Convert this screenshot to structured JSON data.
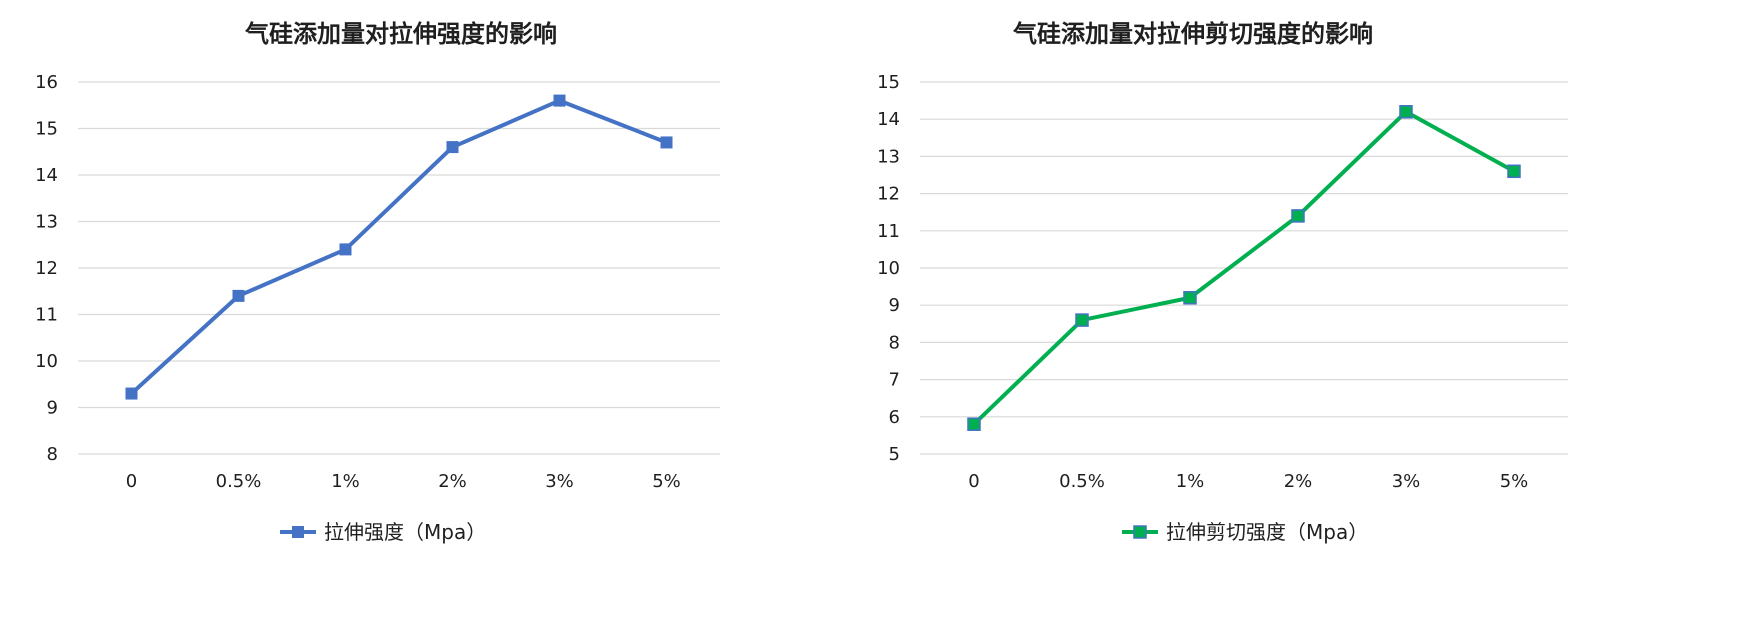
{
  "chart_data": [
    {
      "type": "line",
      "title": "气硅添加量对拉伸强度的影响",
      "xlabel": "",
      "ylabel": "",
      "categories": [
        "0",
        "0.5%",
        "1%",
        "2%",
        "3%",
        "5%"
      ],
      "ylim": [
        8,
        16
      ],
      "yticks": [
        "8",
        "9",
        "10",
        "11",
        "12",
        "13",
        "14",
        "15",
        "16"
      ],
      "grid": true,
      "legend_position": "bottom",
      "series": [
        {
          "name": "拉伸强度（Mpa）",
          "values": [
            9.3,
            11.4,
            12.4,
            14.6,
            15.6,
            14.7
          ],
          "color": "#4472c4",
          "marker_color": "#4472c4",
          "marker": "square"
        }
      ]
    },
    {
      "type": "line",
      "title": "气硅添加量对拉伸剪切强度的影响",
      "xlabel": "",
      "ylabel": "",
      "categories": [
        "0",
        "0.5%",
        "1%",
        "2%",
        "3%",
        "5%"
      ],
      "ylim": [
        5,
        15
      ],
      "yticks": [
        "5",
        "6",
        "7",
        "8",
        "9",
        "10",
        "11",
        "12",
        "13",
        "14",
        "15"
      ],
      "grid": true,
      "legend_position": "bottom",
      "series": [
        {
          "name": "拉伸剪切强度（Mpa）",
          "values": [
            5.8,
            8.6,
            9.2,
            11.4,
            14.2,
            12.6
          ],
          "color": "#00b050",
          "marker_color": "#00b050",
          "marker_border_color": "#4472c4",
          "marker": "square"
        }
      ]
    }
  ]
}
